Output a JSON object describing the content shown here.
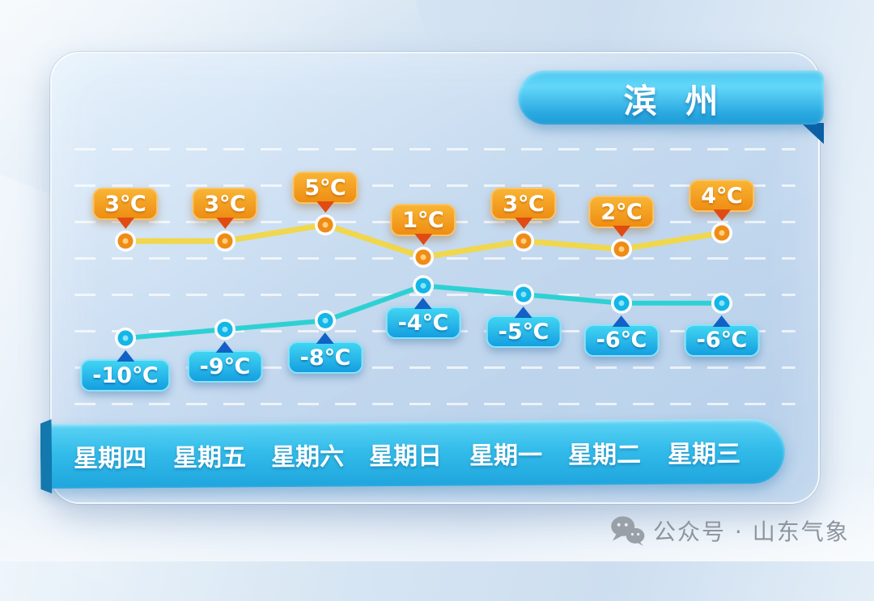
{
  "title_ribbon": {
    "label": "滨州"
  },
  "watermark": {
    "label": "公众号 · 山东气象"
  },
  "chart_data": {
    "type": "line",
    "title": "滨州",
    "categories": [
      "星期四",
      "星期五",
      "星期六",
      "星期日",
      "星期一",
      "星期二",
      "星期三"
    ],
    "unit": "℃",
    "series": [
      {
        "name": "high",
        "values": [
          3,
          3,
          5,
          1,
          3,
          2,
          4
        ],
        "labels": [
          "3℃",
          "3℃",
          "5℃",
          "1℃",
          "3℃",
          "2℃",
          "4℃"
        ],
        "label_position": "above",
        "line_color": "#f0d74d",
        "marker_color": "#ef8c18",
        "marker_dot_color": "#ffcf7a",
        "badge_gradient_top": "#f9b433",
        "badge_gradient_bottom": "#ee8d13",
        "badge_border": "#f8c468",
        "pointer_color": "#e04b12"
      },
      {
        "name": "low",
        "values": [
          -10,
          -9,
          -8,
          -4,
          -5,
          -6,
          -6
        ],
        "labels": [
          "-10℃",
          "-9℃",
          "-8℃",
          "-4℃",
          "-5℃",
          "-6℃",
          "-6℃"
        ],
        "label_position": "below",
        "line_color": "#2ed1d3",
        "marker_color": "#14b5e8",
        "marker_dot_color": "#8ae4f8",
        "badge_gradient_top": "#41d4f2",
        "badge_gradient_bottom": "#149fe0",
        "badge_border": "#86e3fb",
        "pointer_color": "#1261c6"
      }
    ],
    "x_axis": {
      "labels_shown": true,
      "banner_color": "#2ab4e8"
    },
    "y_axis": {
      "shown": false
    },
    "grid": {
      "orientation": "horizontal",
      "style": "dashed",
      "color": "rgba(255,255,255,0.7)"
    },
    "legend": "none"
  }
}
